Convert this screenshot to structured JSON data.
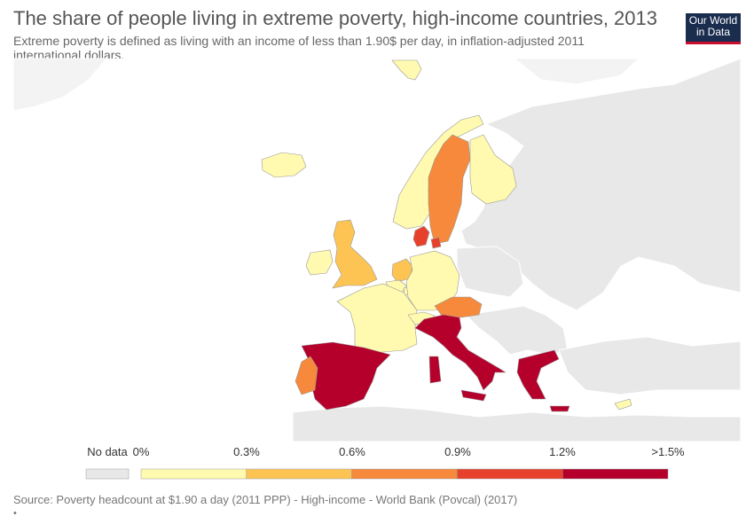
{
  "title": "The share of people living in extreme poverty, high-income countries, 2013",
  "subtitle": "Extreme poverty is defined as living with an income of less than 1.90$ per day, in inflation-adjusted 2011 international dollars.",
  "logo": {
    "line1": "Our World",
    "line2": "in Data",
    "bg": "#1a2d4e",
    "accent": "#c8102e"
  },
  "legend": {
    "no_data_label": "No data",
    "no_data_color": "#e8e8e8",
    "ticks": [
      "0%",
      "0.3%",
      "0.6%",
      "0.9%",
      "1.2%",
      ">1.5%"
    ],
    "bins": [
      {
        "range": "0%-0.3%",
        "color": "#fffaaf"
      },
      {
        "range": "0.3%-0.6%",
        "color": "#fdc454"
      },
      {
        "range": "0.6%-0.9%",
        "color": "#f6893b"
      },
      {
        "range": "0.9%-1.2%",
        "color": "#e8412b"
      },
      {
        "range": ">1.2%",
        "color": "#b5002b"
      }
    ]
  },
  "countries": [
    {
      "name": "Iceland",
      "bin": 0
    },
    {
      "name": "Norway",
      "bin": 0
    },
    {
      "name": "Sweden",
      "bin": 2
    },
    {
      "name": "Finland",
      "bin": 0
    },
    {
      "name": "Denmark",
      "bin": 3
    },
    {
      "name": "United Kingdom",
      "bin": 1
    },
    {
      "name": "Ireland",
      "bin": 0
    },
    {
      "name": "Netherlands",
      "bin": 1
    },
    {
      "name": "Belgium",
      "bin": 0
    },
    {
      "name": "Luxembourg",
      "bin": 0
    },
    {
      "name": "Germany",
      "bin": 0
    },
    {
      "name": "France",
      "bin": 0
    },
    {
      "name": "Switzerland",
      "bin": 0
    },
    {
      "name": "Austria",
      "bin": 2
    },
    {
      "name": "Italy",
      "bin": 4
    },
    {
      "name": "Spain",
      "bin": 4
    },
    {
      "name": "Portugal",
      "bin": 2
    },
    {
      "name": "Greece",
      "bin": 4
    },
    {
      "name": "Cyprus",
      "bin": 0
    },
    {
      "name": "Svalbard",
      "bin": 0
    }
  ],
  "source": "Source: Poverty headcount at $1.90 a day (2011 PPP) - High-income - World Bank (Povcal) (2017)",
  "footnote": "•"
}
